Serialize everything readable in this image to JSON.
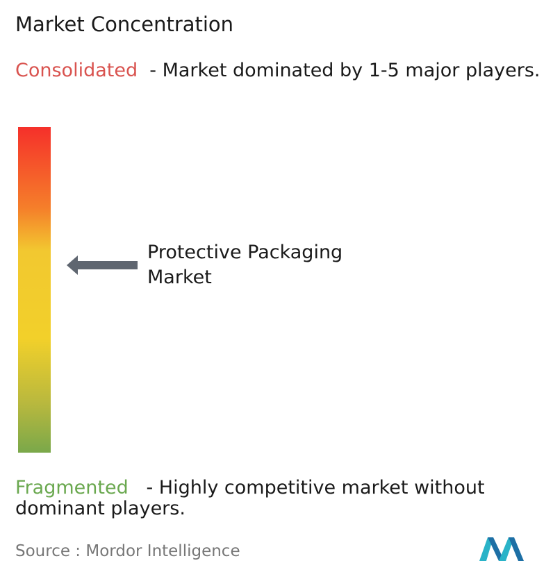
{
  "header": {
    "title": "Market Concentration"
  },
  "consolidated": {
    "label": "Consolidated",
    "description": "- Market dominated by 1-5 major players."
  },
  "marker": {
    "label": "Protective Packaging Market"
  },
  "fragmented": {
    "label": "Fragmented",
    "description": "- Highly competitive market without dominant players."
  },
  "source": {
    "prefix": "Source :",
    "name": "Mordor Intelligence"
  }
}
